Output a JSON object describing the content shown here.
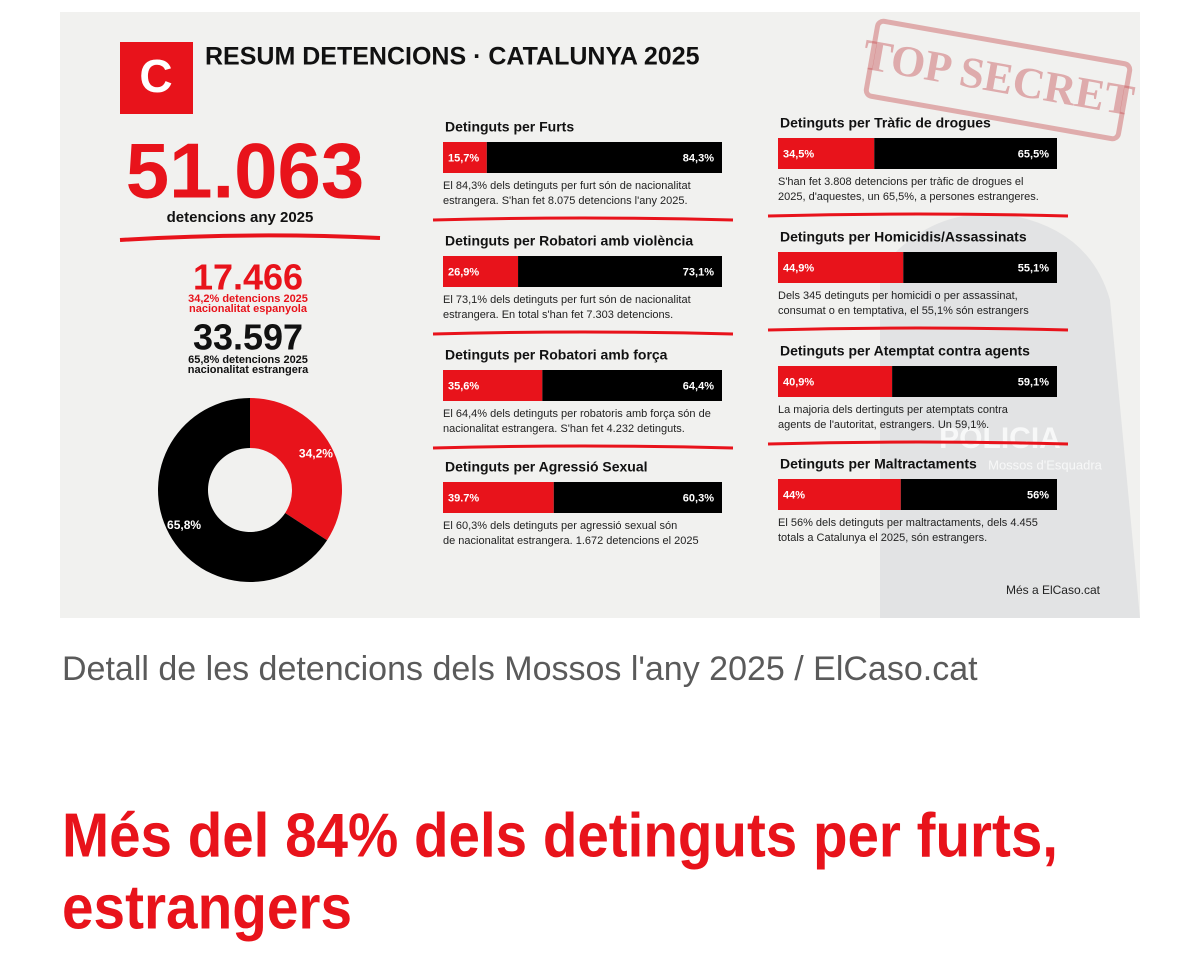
{
  "article": {
    "caption": "Detall de les detencions dels Mossos l'any 2025 / ElCaso.cat",
    "headline": [
      "Més del 84% dels detinguts per furts,",
      "estrangers"
    ]
  },
  "infographic": {
    "logo": "C",
    "title": "RESUM DETENCIONS · CATALUNYA 2025",
    "stamp": "TOP SECRET",
    "total": {
      "value": "51.063",
      "label": "detencions any 2025"
    },
    "spanish": {
      "value": "17.466",
      "lines": [
        "34,2% detencions 2025",
        "nacionalitat espanyola"
      ]
    },
    "foreign": {
      "value": "33.597",
      "lines": [
        "65,8% detencions 2025",
        "nacionalitat estrangera"
      ]
    },
    "donut": {
      "values": [
        34.2,
        65.8
      ],
      "value_labels": [
        "34,2%",
        "65,8%"
      ],
      "colors": [
        "#e8131b",
        "#000000"
      ]
    },
    "bar_colors": [
      "#e8131b",
      "#000000"
    ],
    "panels": [
      {
        "title": "Detinguts per Furts",
        "values": [
          15.7,
          84.3
        ],
        "value_labels": [
          "15,7%",
          "84,3%"
        ],
        "description": [
          "El 84,3% dels detinguts per furt són de nacionalitat",
          "estrangera. S'han fet 8.075 detencions l'any 2025."
        ]
      },
      {
        "title": "Detinguts per Robatori amb violència",
        "values": [
          26.9,
          73.1
        ],
        "value_labels": [
          "26,9%",
          "73,1%"
        ],
        "description": [
          "El 73,1% dels detinguts per furt són de nacionalitat",
          "estrangera. En total s'han fet 7.303 detencions."
        ]
      },
      {
        "title": "Detinguts per Robatori amb força",
        "values": [
          35.6,
          64.4
        ],
        "value_labels": [
          "35,6%",
          "64,4%"
        ],
        "description": [
          "El 64,4% dels detinguts per robatoris amb força són de",
          "nacionalitat estrangera. S'han fet 4.232 detinguts."
        ]
      },
      {
        "title": "Detinguts per Agressió Sexual",
        "values": [
          39.7,
          60.3
        ],
        "value_labels": [
          "39.7%",
          "60,3%"
        ],
        "description": [
          "El 60,3% dels detinguts per agressió sexual són",
          "de nacionalitat estrangera. 1.672 detencions el 2025"
        ]
      },
      {
        "title": "Detinguts per Tràfic de drogues",
        "values": [
          34.5,
          65.5
        ],
        "value_labels": [
          "34,5%",
          "65,5%"
        ],
        "description": [
          "S'han fet 3.808 detencions per tràfic de drogues el",
          "2025, d'aquestes, un 65,5%, a persones estrangeres."
        ]
      },
      {
        "title": "Detinguts per Homicidis/Assassinats",
        "values": [
          44.9,
          55.1
        ],
        "value_labels": [
          "44,9%",
          "55,1%"
        ],
        "description": [
          "Dels 345 detinguts per homicidi o per assassinat,",
          "consumat o en temptativa, el 55,1% són estrangers"
        ]
      },
      {
        "title": "Detinguts per Atemptat contra agents",
        "values": [
          40.9,
          59.1
        ],
        "value_labels": [
          "40,9%",
          "59,1%"
        ],
        "description": [
          "La majoria dels dertinguts per atemptats contra",
          "agents de l'autoritat, estrangers. Un 59,1%."
        ]
      },
      {
        "title": "Detinguts per Maltractaments",
        "values": [
          44,
          56
        ],
        "value_labels": [
          "44%",
          "56%"
        ],
        "description": [
          "El 56% dels detinguts per maltractaments, dels 4.455",
          "totals a Catalunya el 2025, són estrangers."
        ]
      }
    ],
    "background_text": [
      "POLICIA",
      "Mossos d'Esquadra"
    ],
    "footer": "Més a ElCaso.cat"
  }
}
